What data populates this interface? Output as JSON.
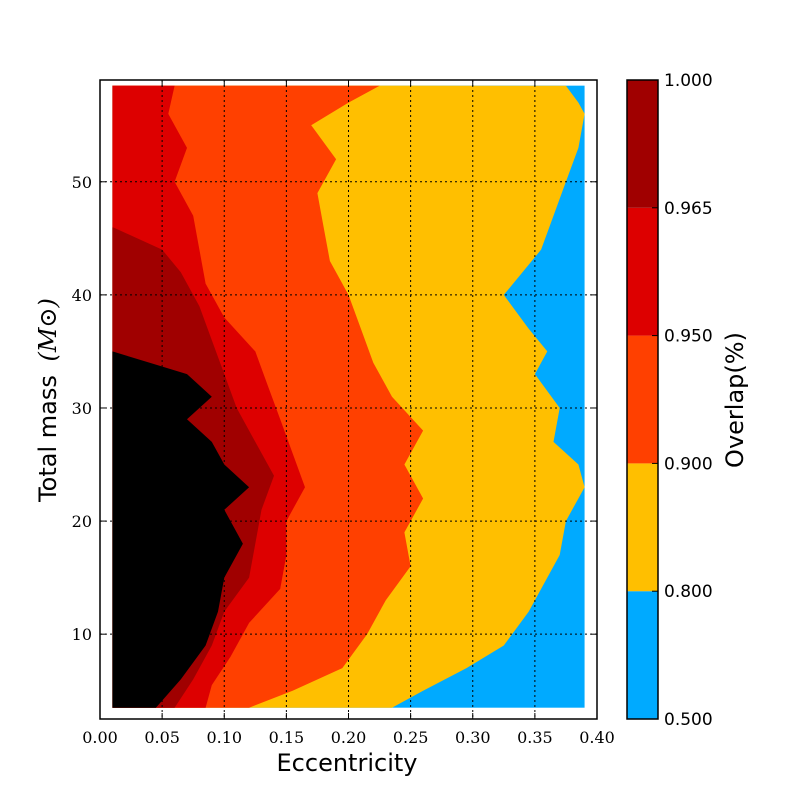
{
  "chart_data": {
    "type": "contour",
    "xlabel": "Eccentricity",
    "ylabel": "Total mass",
    "ylabel_unit": "(M⊙)",
    "colorbar_label": "Overlap(%)",
    "xlim": [
      0.0,
      0.4
    ],
    "ylim": [
      2.5,
      59
    ],
    "x_ticks": [
      "0.00",
      "0.05",
      "0.10",
      "0.15",
      "0.20",
      "0.25",
      "0.30",
      "0.35",
      "0.40"
    ],
    "y_ticks": [
      "10",
      "20",
      "30",
      "40",
      "50"
    ],
    "grid": true,
    "levels": [
      0.5,
      0.8,
      0.9,
      0.95,
      0.965,
      1.0
    ],
    "level_labels": [
      "0.500",
      "0.800",
      "0.900",
      "0.950",
      "0.965",
      "1.000"
    ],
    "level_colors": [
      "#00aaff",
      "#ffbf00",
      "#ff4000",
      "#dd0000",
      "#a00000"
    ],
    "filled_domain": {
      "x": [
        0.01,
        0.39
      ],
      "y": [
        3.5,
        58.5
      ]
    },
    "boundaries": [
      {
        "level": 0.8,
        "points": [
          [
            0.375,
            58.5
          ],
          [
            0.385,
            57
          ],
          [
            0.39,
            56
          ],
          [
            0.385,
            53
          ],
          [
            0.375,
            50
          ],
          [
            0.365,
            47
          ],
          [
            0.355,
            44
          ],
          [
            0.34,
            42
          ],
          [
            0.325,
            40
          ],
          [
            0.345,
            37
          ],
          [
            0.36,
            35
          ],
          [
            0.35,
            33
          ],
          [
            0.37,
            30
          ],
          [
            0.365,
            27
          ],
          [
            0.385,
            25
          ],
          [
            0.39,
            23
          ],
          [
            0.375,
            20
          ],
          [
            0.37,
            17
          ],
          [
            0.36,
            15
          ],
          [
            0.345,
            12
          ],
          [
            0.325,
            9
          ],
          [
            0.295,
            7
          ],
          [
            0.26,
            5
          ],
          [
            0.235,
            3.5
          ]
        ]
      },
      {
        "level": 0.9,
        "points": [
          [
            0.225,
            58.5
          ],
          [
            0.2,
            57
          ],
          [
            0.17,
            55
          ],
          [
            0.19,
            52
          ],
          [
            0.175,
            49
          ],
          [
            0.18,
            46
          ],
          [
            0.185,
            43
          ],
          [
            0.2,
            40
          ],
          [
            0.21,
            37
          ],
          [
            0.22,
            34
          ],
          [
            0.235,
            31
          ],
          [
            0.26,
            28
          ],
          [
            0.245,
            25
          ],
          [
            0.26,
            22
          ],
          [
            0.245,
            19
          ],
          [
            0.25,
            16
          ],
          [
            0.23,
            13
          ],
          [
            0.215,
            10
          ],
          [
            0.195,
            7
          ],
          [
            0.155,
            5
          ],
          [
            0.12,
            3.5
          ]
        ]
      },
      {
        "level": 0.95,
        "points": [
          [
            0.06,
            58.5
          ],
          [
            0.055,
            56
          ],
          [
            0.07,
            53
          ],
          [
            0.06,
            50
          ],
          [
            0.075,
            47
          ],
          [
            0.08,
            44
          ],
          [
            0.085,
            41
          ],
          [
            0.1,
            38
          ],
          [
            0.125,
            35
          ],
          [
            0.135,
            32
          ],
          [
            0.145,
            29
          ],
          [
            0.155,
            26
          ],
          [
            0.165,
            23
          ],
          [
            0.15,
            20
          ],
          [
            0.15,
            17
          ],
          [
            0.145,
            14
          ],
          [
            0.12,
            11
          ],
          [
            0.105,
            8
          ],
          [
            0.09,
            5.5
          ],
          [
            0.085,
            3.5
          ]
        ]
      },
      {
        "level": 0.965,
        "points": [
          [
            0.01,
            46
          ],
          [
            0.05,
            44
          ],
          [
            0.065,
            42
          ],
          [
            0.08,
            39
          ],
          [
            0.09,
            36
          ],
          [
            0.1,
            33
          ],
          [
            0.11,
            30
          ],
          [
            0.125,
            27
          ],
          [
            0.14,
            24
          ],
          [
            0.13,
            21
          ],
          [
            0.125,
            18
          ],
          [
            0.12,
            15
          ],
          [
            0.1,
            12
          ],
          [
            0.09,
            9
          ],
          [
            0.075,
            6
          ],
          [
            0.06,
            3.5
          ]
        ]
      },
      {
        "level": 1.0,
        "points": [
          [
            0.01,
            35
          ],
          [
            0.04,
            34
          ],
          [
            0.07,
            33
          ],
          [
            0.09,
            31
          ],
          [
            0.07,
            29
          ],
          [
            0.09,
            27
          ],
          [
            0.1,
            25
          ],
          [
            0.12,
            23
          ],
          [
            0.1,
            21
          ],
          [
            0.115,
            18
          ],
          [
            0.1,
            15
          ],
          [
            0.095,
            12
          ],
          [
            0.085,
            9
          ],
          [
            0.065,
            6
          ],
          [
            0.045,
            3.5
          ]
        ]
      }
    ]
  }
}
